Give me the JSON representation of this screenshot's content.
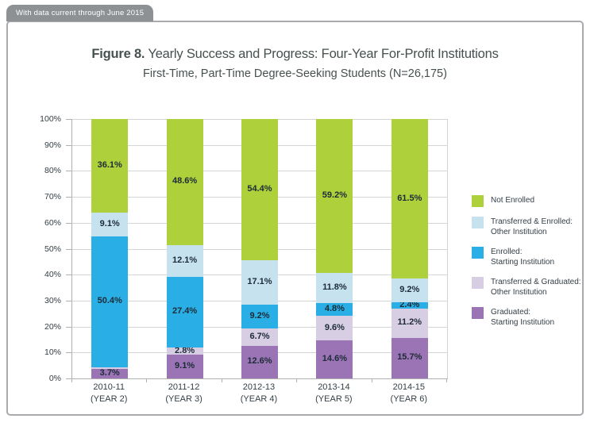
{
  "tab": {
    "label": "With data current through June 2015"
  },
  "title": {
    "prefix": "Figure 8.",
    "text": " Yearly Success and Progress: Four-Year For-Profit Institutions"
  },
  "subtitle": "First-Time, Part-Time Degree-Seeking Students (N=26,175)",
  "chart_data": {
    "type": "bar",
    "stacked": true,
    "title": "Figure 8. Yearly Success and Progress: Four-Year For-Profit Institutions",
    "subtitle": "First-Time, Part-Time Degree-Seeking Students (N=26,175)",
    "categories": [
      {
        "label": "2010-11",
        "sub": "(YEAR 2)"
      },
      {
        "label": "2011-12",
        "sub": "(YEAR 3)"
      },
      {
        "label": "2012-13",
        "sub": "(YEAR 4)"
      },
      {
        "label": "2013-14",
        "sub": "(YEAR 5)"
      },
      {
        "label": "2014-15",
        "sub": "(YEAR 6)"
      }
    ],
    "series": [
      {
        "name": "Graduated: Starting Institution",
        "color": "#9a74b4",
        "values": [
          3.7,
          9.1,
          12.6,
          14.6,
          15.7
        ]
      },
      {
        "name": "Transferred & Graduated: Other Institution",
        "color": "#d8cee4",
        "values": [
          0.7,
          2.8,
          6.7,
          9.6,
          11.2
        ]
      },
      {
        "name": "Enrolled: Starting Institution",
        "color": "#29afe5",
        "values": [
          50.4,
          27.4,
          9.2,
          4.8,
          2.4
        ]
      },
      {
        "name": "Transferred & Enrolled: Other Institution",
        "color": "#c6e2ef",
        "values": [
          9.1,
          12.1,
          17.1,
          11.8,
          9.2
        ]
      },
      {
        "name": "Not Enrolled",
        "color": "#aed13b",
        "values": [
          36.1,
          48.6,
          54.4,
          59.2,
          61.5
        ]
      }
    ],
    "ylim": [
      0,
      100
    ],
    "yticks": [
      "0%",
      "10%",
      "20%",
      "30%",
      "40%",
      "50%",
      "60%",
      "70%",
      "80%",
      "90%",
      "100%"
    ],
    "grid": true,
    "legend_position": "right",
    "legend": [
      {
        "color": "#aed13b",
        "lines": [
          "Not Enrolled"
        ]
      },
      {
        "color": "#c6e2ef",
        "lines": [
          "Transferred & Enrolled:",
          "Other Institution"
        ]
      },
      {
        "color": "#29afe5",
        "lines": [
          "Enrolled:",
          "Starting Institution"
        ]
      },
      {
        "color": "#d8cee4",
        "lines": [
          "Transferred & Graduated:",
          "Other Institution"
        ]
      },
      {
        "color": "#9a74b4",
        "lines": [
          "Graduated:",
          "Starting Institution"
        ]
      }
    ]
  }
}
